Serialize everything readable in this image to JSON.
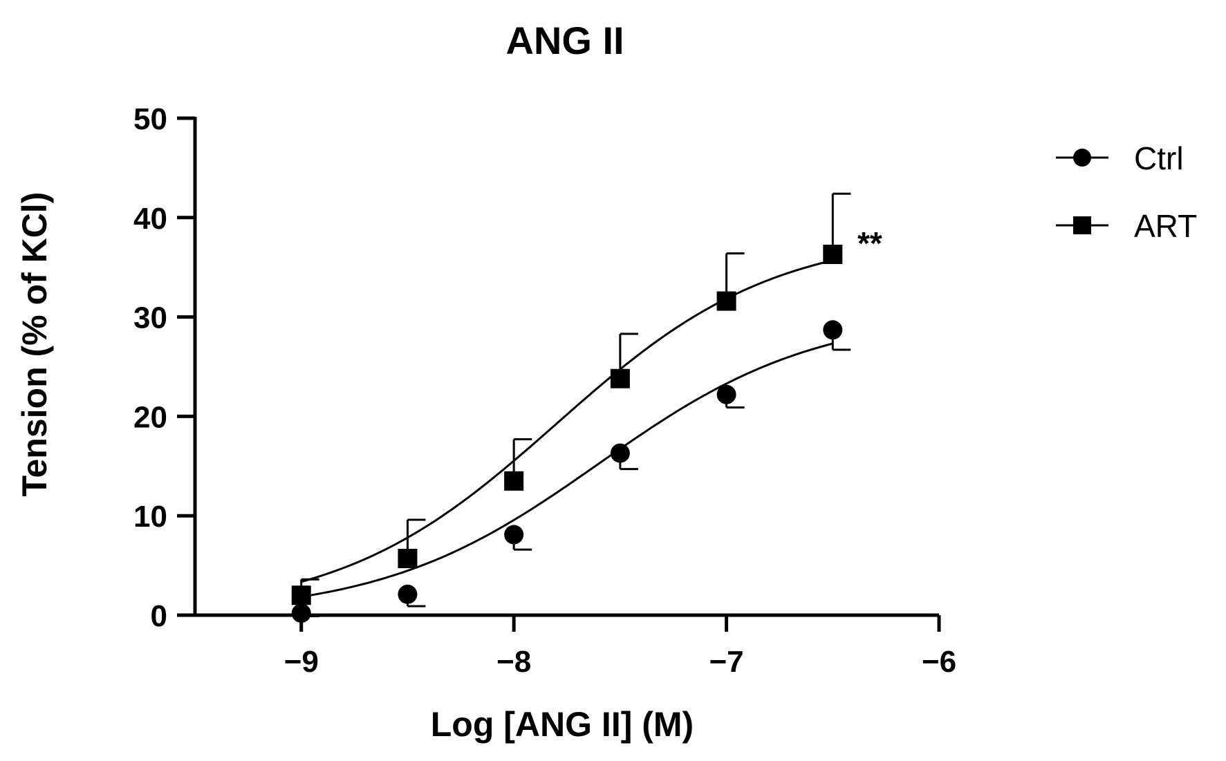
{
  "chart_data": {
    "type": "scatter",
    "title": "ANG II",
    "xlabel": "Log [ANG II] (M)",
    "ylabel": "Tension (% of KCl)",
    "xlim": [
      -9.5,
      -6
    ],
    "ylim": [
      0,
      50
    ],
    "x_ticks": [
      -9,
      -8,
      -7,
      -6
    ],
    "x_tick_labels": [
      "−9",
      "−8",
      "−7",
      "−6"
    ],
    "y_ticks": [
      0,
      10,
      20,
      30,
      40,
      50
    ],
    "y_tick_labels": [
      "0",
      "10",
      "20",
      "30",
      "40",
      "50"
    ],
    "grid": false,
    "legend_position": "top-right",
    "annotation": "**",
    "series": [
      {
        "name": "Ctrl",
        "marker": "circle",
        "color": "#000000",
        "x": [
          -9,
          -8.5,
          -8,
          -7.5,
          -7,
          -6.5
        ],
        "y": [
          0.2,
          2.1,
          8.1,
          16.3,
          22.2,
          28.7
        ],
        "error": [
          0.3,
          1.2,
          1.5,
          1.6,
          1.3,
          2.0
        ],
        "error_direction": "down",
        "fit": {
          "bottom": 0,
          "top": 30.5,
          "logEC50": -7.6,
          "hill": 0.85
        }
      },
      {
        "name": "ART",
        "marker": "square",
        "color": "#000000",
        "x": [
          -9,
          -8.5,
          -8,
          -7.5,
          -7,
          -6.5
        ],
        "y": [
          2.0,
          5.7,
          13.5,
          23.8,
          31.6,
          36.3
        ],
        "error": [
          1.6,
          3.9,
          4.2,
          4.5,
          4.8,
          6.1
        ],
        "error_direction": "up",
        "fit": {
          "bottom": 0,
          "top": 38.5,
          "logEC50": -7.8,
          "hill": 0.85
        }
      }
    ]
  }
}
